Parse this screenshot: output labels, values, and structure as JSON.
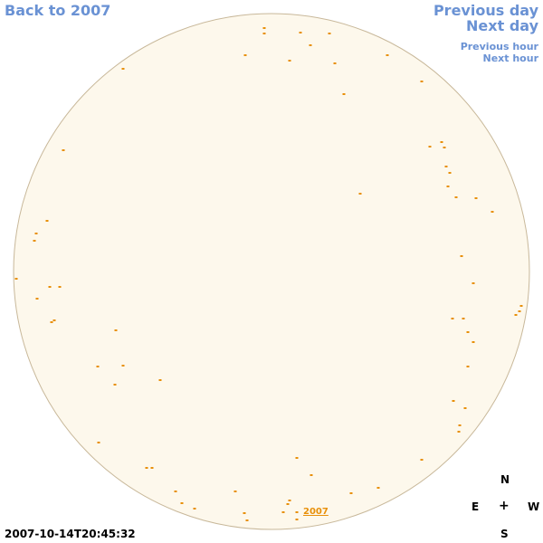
{
  "nav": {
    "back_label": "Back to 2007",
    "prev_day_label": "Previous day",
    "next_day_label": "Next day",
    "prev_hour_label": "Previous hour",
    "next_hour_label": "Next hour"
  },
  "sky": {
    "year_label": "2007",
    "timestamp": "2007-10-14T20:45:32",
    "background_color": "#fdf8ec",
    "border_color": "#c8b89a",
    "marker_color": "#e8900a"
  },
  "compass": {
    "north": "N",
    "south": "S",
    "east": "E",
    "west": "W",
    "center": "+"
  }
}
